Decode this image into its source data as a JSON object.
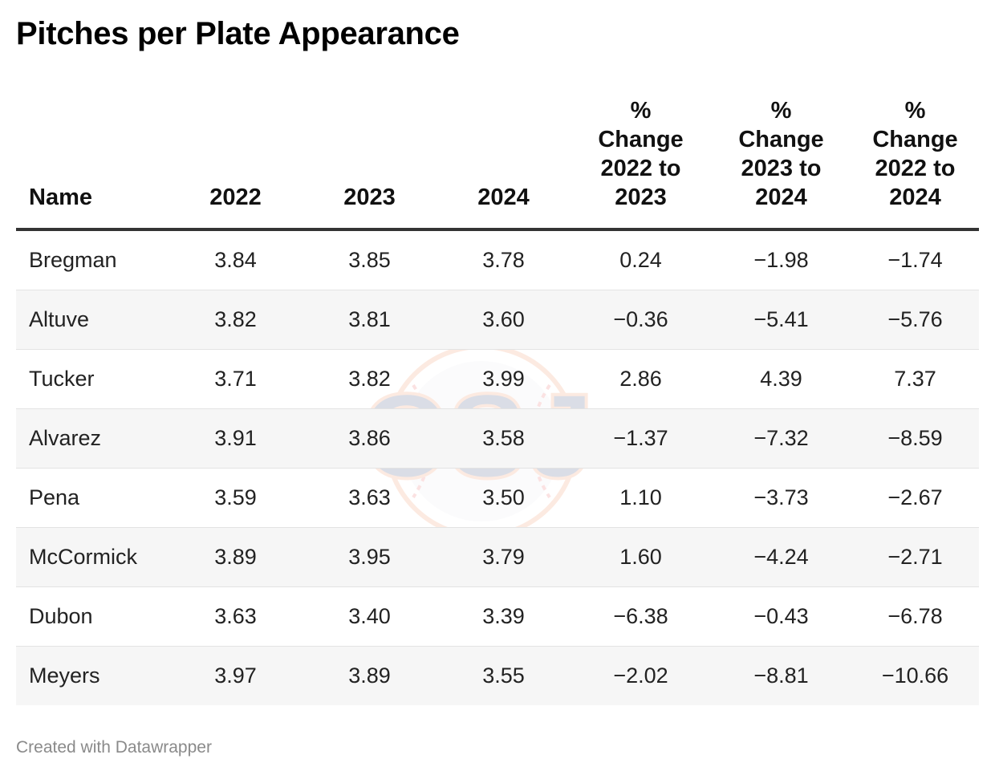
{
  "title": "Pitches per Plate Appearance",
  "footer": "Created with Datawrapper",
  "watermark": "CSJ",
  "chart_data": {
    "type": "table",
    "title": "Pitches per Plate Appearance",
    "columns": [
      [
        "Name"
      ],
      [
        "2022"
      ],
      [
        "2023"
      ],
      [
        "2024"
      ],
      [
        "%",
        "Change",
        "2022 to",
        "2023"
      ],
      [
        "%",
        "Change",
        "2023 to",
        "2024"
      ],
      [
        "%",
        "Change",
        "2022 to",
        "2024"
      ]
    ],
    "rows": [
      [
        "Bregman",
        "3.84",
        "3.85",
        "3.78",
        "0.24",
        "−1.98",
        "−1.74"
      ],
      [
        "Altuve",
        "3.82",
        "3.81",
        "3.60",
        "−0.36",
        "−5.41",
        "−5.76"
      ],
      [
        "Tucker",
        "3.71",
        "3.82",
        "3.99",
        "2.86",
        "4.39",
        "7.37"
      ],
      [
        "Alvarez",
        "3.91",
        "3.86",
        "3.58",
        "−1.37",
        "−7.32",
        "−8.59"
      ],
      [
        "Pena",
        "3.59",
        "3.63",
        "3.50",
        "1.10",
        "−3.73",
        "−2.67"
      ],
      [
        "McCormick",
        "3.89",
        "3.95",
        "3.79",
        "1.60",
        "−4.24",
        "−2.71"
      ],
      [
        "Dubon",
        "3.63",
        "3.40",
        "3.39",
        "−6.38",
        "−0.43",
        "−6.78"
      ],
      [
        "Meyers",
        "3.97",
        "3.89",
        "3.55",
        "−2.02",
        "−8.81",
        "−10.66"
      ]
    ]
  }
}
